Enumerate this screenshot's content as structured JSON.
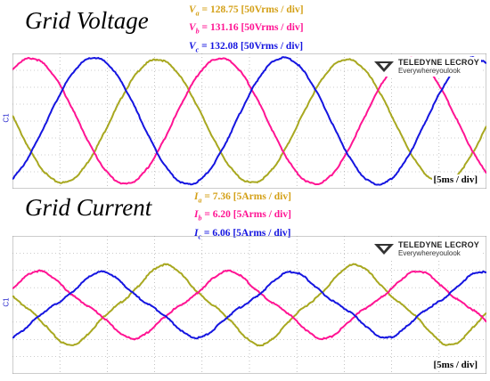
{
  "colors": {
    "a": "#a8a820",
    "b": "#ff1493",
    "c": "#1515e0",
    "grid": "#9a9a9a"
  },
  "voltage": {
    "title": "Grid Voltage",
    "legend": [
      {
        "sym": "V",
        "sub": "a",
        "text": " = 128.75 [50Vrms / div]",
        "color": "#d4a017"
      },
      {
        "sym": "V",
        "sub": "b",
        "text": " = 131.16 [50Vrms / div]",
        "color": "#ff1493"
      },
      {
        "sym": "V",
        "sub": "c",
        "text": " = 132.08 [50Vrms / div]",
        "color": "#1515e0"
      }
    ],
    "time_div": "[5ms / div]",
    "zero_marker": "C1"
  },
  "current": {
    "title": "Grid Current",
    "legend": [
      {
        "sym": "I",
        "sub": "a",
        "text": " = 7.36 [5Arms / div]",
        "color": "#d4a017"
      },
      {
        "sym": "I",
        "sub": "b",
        "text": " = 6.20 [5Arms / div]",
        "color": "#ff1493"
      },
      {
        "sym": "I",
        "sub": "c",
        "text": " = 6.06 [5Arms / div]",
        "color": "#1515e0"
      }
    ],
    "time_div": "[5ms / div]",
    "zero_marker": "C1"
  },
  "brand": {
    "name": "TELEDYNE LECROY",
    "tagline": "Everywhereyoulook"
  },
  "chart_data": [
    {
      "type": "line",
      "title": "Grid Voltage",
      "x_unit": "ms",
      "x_per_div": 5,
      "x_divs": 10,
      "y_divs": 8,
      "y_per_div": "50 V",
      "grid": true,
      "frequency_hz": 50,
      "series": [
        {
          "name": "Va",
          "rms": 128.75,
          "peak_divs": 3.64,
          "phase_deg": 175
        },
        {
          "name": "Vb",
          "rms": 131.16,
          "peak_divs": 3.71,
          "phase_deg": 55
        },
        {
          "name": "Vc",
          "rms": 132.08,
          "peak_divs": 3.74,
          "phase_deg": -65
        }
      ]
    },
    {
      "type": "line",
      "title": "Grid Current",
      "x_unit": "ms",
      "x_per_div": 5,
      "x_divs": 10,
      "y_divs": 8,
      "y_per_div": "5 A",
      "grid": true,
      "frequency_hz": 50,
      "series": [
        {
          "name": "Ia",
          "rms": 7.36,
          "peak_divs": 2.08,
          "phase_deg": 160
        },
        {
          "name": "Ib",
          "rms": 6.2,
          "peak_divs": 1.75,
          "phase_deg": 40
        },
        {
          "name": "Ic",
          "rms": 6.06,
          "peak_divs": 1.71,
          "phase_deg": -80
        }
      ]
    }
  ]
}
